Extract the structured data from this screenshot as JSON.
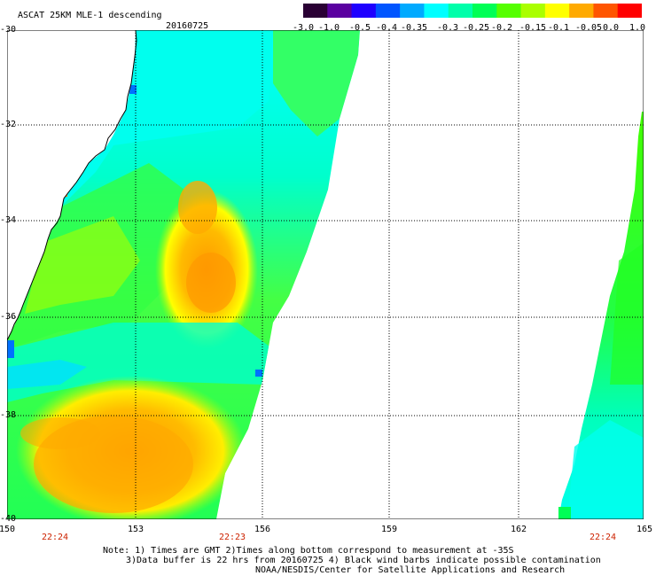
{
  "title": "ASCAT 25KM MLE-1 descending",
  "date": "20160725",
  "colorbar": {
    "labels": [
      "-3.0",
      "-1.0",
      "-0.5",
      "-0.4",
      "-0.35",
      "-0.3",
      "-0.25",
      "-0.2",
      "-0.15",
      "-0.1",
      "-0.05",
      "0.0",
      "1.0"
    ],
    "colors": [
      "#2a0034",
      "#5a00a0",
      "#1f00ff",
      "#0055ff",
      "#00aaff",
      "#00ffff",
      "#00ffaa",
      "#00ff55",
      "#55ff00",
      "#aaff00",
      "#ffff00",
      "#ffaa00",
      "#ff5500",
      "#ff0000"
    ]
  },
  "latitudes": [
    "-30",
    "-32",
    "-34",
    "-36",
    "-38",
    "-40"
  ],
  "longitudes": [
    "150",
    "153",
    "156",
    "159",
    "162",
    "165"
  ],
  "pass_times": [
    "22:24",
    "22:23",
    "22:24"
  ],
  "notes": [
    "Note: 1) Times are GMT 2)Times along bottom correspond to measurement at -35S",
    "3)Data buffer is 22 hrs from 20160725 4) Black wind barbs indicate possible contamination",
    "NOAA/NESDIS/Center for Satellite Applications and Research"
  ],
  "map_colors": {
    "cyan": "#00ffff",
    "aqua": "#00f0c8",
    "green": "#00ff55",
    "lime": "#66ff00",
    "yellow": "#ffff00",
    "orange": "#ffaa00",
    "darkorange": "#ff9900",
    "blue": "#0070ff",
    "coast": "#000000"
  }
}
